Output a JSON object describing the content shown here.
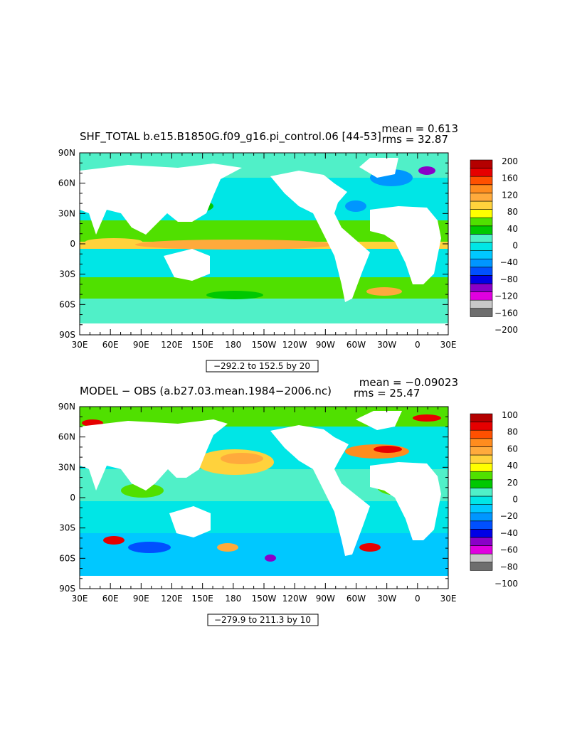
{
  "colorbar_colors": [
    "#6e6e6e",
    "#c8c8c8",
    "#e000e0",
    "#8a00c8",
    "#0000e6",
    "#0050ff",
    "#0096ff",
    "#00c8ff",
    "#00e6e6",
    "#50f0c8",
    "#00c800",
    "#50e000",
    "#ffff00",
    "#ffd23c",
    "#ffaa3c",
    "#ff8c1e",
    "#ff5000",
    "#e60000",
    "#b40000"
  ],
  "panels": [
    {
      "title": "SHF_TOTAL b.e15.B1850G.f09_g16.pi_control.06 [44-53]",
      "mean_text": "mean = 0.613",
      "rms_text": "rms = 32.87",
      "range_text": "−292.2 to 152.5 by 20",
      "colorbar_labels": [
        "200",
        "160",
        "120",
        "80",
        "40",
        "0",
        "−40",
        "−80",
        "−120",
        "−160",
        "−200"
      ]
    },
    {
      "title": "MODEL − OBS (a.b27.03.mean.1984−2006.nc)",
      "mean_text": "mean = −0.09023",
      "rms_text": "rms = 25.47",
      "range_text": "−279.9 to 211.3 by 10",
      "colorbar_labels": [
        "100",
        "80",
        "60",
        "40",
        "20",
        "0",
        "−20",
        "−40",
        "−60",
        "−80",
        "−100"
      ]
    }
  ],
  "chart_data": [
    {
      "type": "heatmap",
      "title": "SHF_TOTAL b.e15.B1850G.f09_g16.pi_control.06 [44-53]",
      "stats": {
        "mean": 0.613,
        "rms": 32.87
      },
      "contour_range": {
        "min": -292.2,
        "max": 152.5,
        "interval": 20
      },
      "colorbar_levels": [
        -200,
        -180,
        -160,
        -140,
        -120,
        -100,
        -80,
        -60,
        -40,
        -20,
        0,
        20,
        40,
        60,
        80,
        100,
        120,
        140,
        160,
        180,
        200
      ],
      "y_ticks": [
        "90N",
        "60N",
        "30N",
        "0",
        "30S",
        "60S",
        "90S"
      ],
      "x_ticks": [
        "30E",
        "60E",
        "90E",
        "120E",
        "150E",
        "180",
        "150W",
        "120W",
        "90W",
        "60W",
        "30W",
        "0",
        "30E"
      ],
      "ylim": [
        -90,
        90
      ],
      "xlim": [
        30,
        390
      ]
    },
    {
      "type": "heatmap",
      "title": "MODEL − OBS (a.b27.03.mean.1984−2006.nc)",
      "stats": {
        "mean": -0.09023,
        "rms": 25.47
      },
      "contour_range": {
        "min": -279.9,
        "max": 211.3,
        "interval": 10
      },
      "colorbar_levels": [
        -100,
        -90,
        -80,
        -70,
        -60,
        -50,
        -40,
        -30,
        -20,
        -10,
        0,
        10,
        20,
        30,
        40,
        50,
        60,
        70,
        80,
        90,
        100
      ],
      "y_ticks": [
        "90N",
        "60N",
        "30N",
        "0",
        "30S",
        "60S",
        "90S"
      ],
      "x_ticks": [
        "30E",
        "60E",
        "90E",
        "120E",
        "150E",
        "180",
        "150W",
        "120W",
        "90W",
        "60W",
        "30W",
        "0",
        "30E"
      ],
      "ylim": [
        -90,
        90
      ],
      "xlim": [
        30,
        390
      ]
    }
  ]
}
